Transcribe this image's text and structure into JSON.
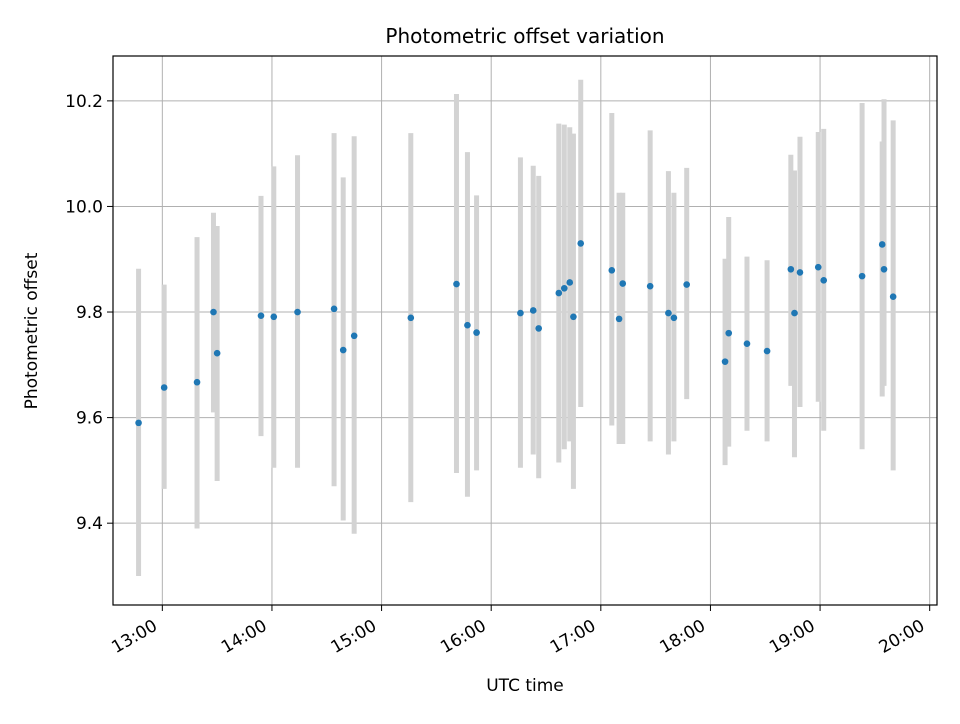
{
  "chart_data": {
    "type": "scatter",
    "title": "Photometric offset variation",
    "xlabel": "UTC time",
    "ylabel": "Photometric offset",
    "xlim": [
      "12:33",
      "20:04"
    ],
    "ylim": [
      9.245,
      10.285
    ],
    "x_ticks": [
      "13:00",
      "14:00",
      "15:00",
      "16:00",
      "17:00",
      "18:00",
      "19:00",
      "20:00"
    ],
    "y_ticks": [
      9.4,
      9.6,
      9.8,
      10.0,
      10.2
    ],
    "y_tick_labels": [
      "9.4",
      "9.6",
      "9.8",
      "10.0",
      "10.2"
    ],
    "grid": true,
    "marker_color": "#1f77b4",
    "errorbar_color": "#d3d3d3",
    "series": [
      {
        "x": [
          "12:47",
          "13:01",
          "13:19",
          "13:28",
          "13:30",
          "13:54",
          "14:01",
          "14:14",
          "14:34",
          "14:39",
          "14:45",
          "15:16",
          "15:41",
          "15:47",
          "15:52",
          "16:16",
          "16:23",
          "16:26",
          "16:37",
          "16:40",
          "16:43",
          "16:45",
          "16:49",
          "17:06",
          "17:10",
          "17:12",
          "17:27",
          "17:37",
          "17:40",
          "17:47",
          "18:08",
          "18:10",
          "18:20",
          "18:31",
          "18:44",
          "18:46",
          "18:49",
          "18:59",
          "19:02",
          "19:23",
          "19:34",
          "19:35",
          "19:40"
        ],
        "y": [
          9.59,
          9.657,
          9.667,
          9.8,
          9.722,
          9.793,
          9.791,
          9.8,
          9.806,
          9.728,
          9.755,
          9.789,
          9.853,
          9.775,
          9.761,
          9.798,
          9.803,
          9.769,
          9.836,
          9.845,
          9.856,
          9.791,
          9.93,
          9.879,
          9.787,
          9.854,
          9.849,
          9.798,
          9.789,
          9.852,
          9.706,
          9.76,
          9.74,
          9.726,
          9.881,
          9.798,
          9.875,
          9.885,
          9.86,
          9.868,
          9.928,
          9.881,
          9.829
        ],
        "err_low": [
          9.3,
          9.465,
          9.39,
          9.61,
          9.48,
          9.565,
          9.505,
          9.505,
          9.47,
          9.405,
          9.38,
          9.44,
          9.495,
          9.45,
          9.5,
          9.505,
          9.53,
          9.485,
          9.515,
          9.54,
          9.555,
          9.465,
          9.62,
          9.585,
          9.55,
          9.55,
          9.555,
          9.53,
          9.555,
          9.635,
          9.51,
          9.545,
          9.575,
          9.555,
          9.66,
          9.525,
          9.62,
          9.63,
          9.575,
          9.54,
          9.64,
          9.66,
          9.5
        ],
        "err_high": [
          9.882,
          9.852,
          9.942,
          9.988,
          9.963,
          10.02,
          10.076,
          10.097,
          10.139,
          10.055,
          10.133,
          10.139,
          10.213,
          10.103,
          10.021,
          10.093,
          10.077,
          10.058,
          10.157,
          10.155,
          10.15,
          10.138,
          10.24,
          10.177,
          10.026,
          10.026,
          10.144,
          10.067,
          10.026,
          10.073,
          9.901,
          9.98,
          9.905,
          9.898,
          10.098,
          10.068,
          10.132,
          10.141,
          10.147,
          10.196,
          10.123,
          10.203,
          10.163
        ]
      }
    ]
  }
}
